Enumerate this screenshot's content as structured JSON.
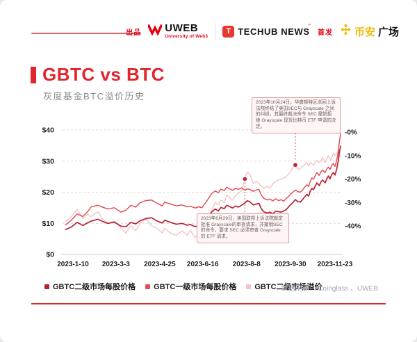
{
  "header": {
    "produced_by_label": "出品",
    "first_release_label": "首发",
    "uweb": {
      "name": "UWEB",
      "subtitle": "University of Web3"
    },
    "techub": {
      "icon_letter": "T",
      "name": "TECHUB NEWS",
      "accent": "ˆ"
    },
    "binance": {
      "name_cn": "币安",
      "name_suffix": "广场"
    }
  },
  "title": {
    "main": "GBTC vs BTC",
    "subtitle": "灰度基金BTC溢价历史"
  },
  "legend": [
    {
      "label": "GBTC二级市场每股价格",
      "color": "#b82230"
    },
    {
      "label": "GBTC一级市场每股价格",
      "color": "#e25158"
    },
    {
      "label": "GBTC二级市场溢价",
      "color": "#f2c4c6"
    }
  ],
  "source": {
    "text": "数据来源： Coinglass 、UWEB"
  },
  "colors": {
    "accent_red": "#e2242c",
    "brand_red": "#e60012",
    "binance_yellow": "#F0B90B",
    "grid_pink": "#eed3d3",
    "annotation_border": "#e59a9a",
    "dot_red": "#c02330"
  },
  "chart_data": {
    "type": "line",
    "title": "灰度基金BTC溢价历史",
    "grid": "horizontal-dashed",
    "legend_position": "bottom",
    "x_axis": {
      "unit": "date",
      "range_days": [
        1,
        334
      ],
      "ticks": [
        {
          "label": "2023-1-10",
          "day": 10
        },
        {
          "label": "2023-3-3",
          "day": 62
        },
        {
          "label": "2023-4-25",
          "day": 115
        },
        {
          "label": "2023-6-16",
          "day": 167
        },
        {
          "label": "2023-8-8",
          "day": 220
        },
        {
          "label": "2023-9-30",
          "day": 273
        },
        {
          "label": "2023-11-23",
          "day": 327
        }
      ]
    },
    "y_left": {
      "unit": "USD",
      "ylim": [
        0,
        44
      ],
      "ticks": [
        {
          "label": "$40",
          "value": 40
        },
        {
          "label": "$30",
          "value": 30
        },
        {
          "label": "$20",
          "value": 20
        },
        {
          "label": "$10",
          "value": 10
        },
        {
          "label": "$0",
          "value": 0
        }
      ]
    },
    "y_right": {
      "unit": "premium %",
      "ylim": [
        0,
        -52
      ],
      "ticks": [
        {
          "label": "-0%",
          "value": 0
        },
        {
          "label": "-10%",
          "value": -10
        },
        {
          "label": "-20%",
          "value": -20
        },
        {
          "label": "-30%",
          "value": -30
        },
        {
          "label": "-40%",
          "value": -40
        }
      ]
    },
    "series": [
      {
        "name": "GBTC二级市场每股价格",
        "axis": "left",
        "color": "#b82230",
        "points": [
          [
            1,
            8.0
          ],
          [
            8,
            8.8
          ],
          [
            15,
            10.3
          ],
          [
            22,
            9.3
          ],
          [
            28,
            10.2
          ],
          [
            32,
            10.7
          ],
          [
            40,
            11.3
          ],
          [
            46,
            10.6
          ],
          [
            52,
            10.0
          ],
          [
            60,
            10.4
          ],
          [
            68,
            9.1
          ],
          [
            74,
            8.9
          ],
          [
            80,
            10.3
          ],
          [
            86,
            9.8
          ],
          [
            91,
            10.8
          ],
          [
            98,
            11.5
          ],
          [
            105,
            11.8
          ],
          [
            112,
            10.7
          ],
          [
            118,
            10.1
          ],
          [
            121,
            11.0
          ],
          [
            128,
            10.3
          ],
          [
            135,
            9.7
          ],
          [
            142,
            10.0
          ],
          [
            148,
            9.4
          ],
          [
            152,
            9.6
          ],
          [
            158,
            8.9
          ],
          [
            162,
            9.3
          ],
          [
            166,
            9.4
          ],
          [
            172,
            11.2
          ],
          [
            178,
            13.7
          ],
          [
            182,
            14.6
          ],
          [
            186,
            14.0
          ],
          [
            189,
            15.1
          ],
          [
            193,
            14.7
          ],
          [
            196,
            15.8
          ],
          [
            200,
            15.3
          ],
          [
            203,
            14.9
          ],
          [
            207,
            15.6
          ],
          [
            210,
            15.2
          ],
          [
            214,
            15.8
          ],
          [
            218,
            16.5
          ],
          [
            221,
            17.3
          ],
          [
            224,
            16.9
          ],
          [
            228,
            15.9
          ],
          [
            232,
            16.2
          ],
          [
            235,
            16.4
          ],
          [
            238,
            14.6
          ],
          [
            241,
            13.7
          ],
          [
            245,
            13.3
          ],
          [
            248,
            13.6
          ],
          [
            252,
            13.1
          ],
          [
            255,
            13.9
          ],
          [
            262,
            13.6
          ],
          [
            268,
            14.4
          ],
          [
            273,
            15.9
          ],
          [
            276,
            16.7
          ],
          [
            279,
            17.6
          ],
          [
            282,
            17.0
          ],
          [
            285,
            16.8
          ],
          [
            288,
            17.7
          ],
          [
            290,
            18.4
          ],
          [
            293,
            19.3
          ],
          [
            295,
            18.7
          ],
          [
            297,
            20.3
          ],
          [
            299,
            21.2
          ],
          [
            301,
            20.8
          ],
          [
            303,
            21.9
          ],
          [
            305,
            23.0
          ],
          [
            308,
            22.1
          ],
          [
            310,
            23.3
          ],
          [
            312,
            23.9
          ],
          [
            315,
            23.0
          ],
          [
            317,
            24.2
          ],
          [
            319,
            25.2
          ],
          [
            321,
            24.3
          ],
          [
            323,
            25.7
          ],
          [
            325,
            26.3
          ],
          [
            327,
            25.5
          ],
          [
            329,
            27.4
          ],
          [
            331,
            30.2
          ],
          [
            332,
            32.4
          ],
          [
            333,
            33.8
          ],
          [
            334,
            34.8
          ]
        ]
      },
      {
        "name": "GBTC一级市场每股价格",
        "axis": "left",
        "color": "#e25158",
        "points": [
          [
            1,
            9.5
          ],
          [
            8,
            11.0
          ],
          [
            15,
            13.0
          ],
          [
            22,
            12.2
          ],
          [
            28,
            13.8
          ],
          [
            32,
            15.3
          ],
          [
            40,
            15.8
          ],
          [
            46,
            15.2
          ],
          [
            52,
            14.6
          ],
          [
            60,
            15.0
          ],
          [
            68,
            13.6
          ],
          [
            74,
            14.2
          ],
          [
            80,
            15.8
          ],
          [
            86,
            15.2
          ],
          [
            91,
            16.6
          ],
          [
            98,
            17.3
          ],
          [
            105,
            17.5
          ],
          [
            112,
            16.4
          ],
          [
            118,
            15.6
          ],
          [
            121,
            16.8
          ],
          [
            128,
            16.2
          ],
          [
            135,
            15.6
          ],
          [
            142,
            15.9
          ],
          [
            148,
            15.3
          ],
          [
            152,
            15.5
          ],
          [
            158,
            14.9
          ],
          [
            162,
            15.3
          ],
          [
            166,
            15.0
          ],
          [
            172,
            17.2
          ],
          [
            178,
            19.6
          ],
          [
            182,
            20.4
          ],
          [
            186,
            19.8
          ],
          [
            189,
            21.0
          ],
          [
            193,
            20.5
          ],
          [
            196,
            21.6
          ],
          [
            200,
            21.0
          ],
          [
            203,
            20.6
          ],
          [
            207,
            21.3
          ],
          [
            210,
            20.9
          ],
          [
            214,
            21.4
          ],
          [
            218,
            20.6
          ],
          [
            221,
            21.1
          ],
          [
            224,
            20.9
          ],
          [
            228,
            20.3
          ],
          [
            232,
            20.7
          ],
          [
            235,
            20.9
          ],
          [
            238,
            19.0
          ],
          [
            241,
            18.0
          ],
          [
            245,
            17.5
          ],
          [
            248,
            17.8
          ],
          [
            252,
            17.2
          ],
          [
            255,
            17.9
          ],
          [
            259,
            17.3
          ],
          [
            262,
            17.6
          ],
          [
            265,
            17.1
          ],
          [
            268,
            18.0
          ],
          [
            271,
            18.6
          ],
          [
            273,
            19.4
          ],
          [
            276,
            20.0
          ],
          [
            279,
            20.7
          ],
          [
            282,
            20.2
          ],
          [
            285,
            20.0
          ],
          [
            288,
            20.8
          ],
          [
            290,
            21.5
          ],
          [
            293,
            22.4
          ],
          [
            295,
            21.8
          ],
          [
            297,
            23.4
          ],
          [
            299,
            24.6
          ],
          [
            301,
            24.2
          ],
          [
            303,
            25.3
          ],
          [
            305,
            26.3
          ],
          [
            308,
            25.4
          ],
          [
            310,
            26.6
          ],
          [
            312,
            27.1
          ],
          [
            315,
            26.3
          ],
          [
            317,
            27.4
          ],
          [
            319,
            28.1
          ],
          [
            321,
            27.3
          ],
          [
            323,
            28.6
          ],
          [
            325,
            29.2
          ],
          [
            327,
            28.3
          ],
          [
            329,
            30.2
          ],
          [
            331,
            33.0
          ],
          [
            332,
            35.5
          ],
          [
            333,
            37.4
          ],
          [
            334,
            38.8
          ]
        ]
      },
      {
        "name": "GBTC二级市场溢价",
        "axis": "right",
        "color": "#f2c4c6",
        "points": [
          [
            1,
            -38
          ],
          [
            8,
            -36
          ],
          [
            15,
            -33
          ],
          [
            22,
            -37
          ],
          [
            28,
            -35
          ],
          [
            32,
            -36
          ],
          [
            40,
            -34
          ],
          [
            46,
            -37
          ],
          [
            52,
            -39
          ],
          [
            60,
            -38
          ],
          [
            68,
            -41
          ],
          [
            74,
            -43
          ],
          [
            80,
            -40
          ],
          [
            86,
            -42
          ],
          [
            91,
            -39
          ],
          [
            98,
            -37
          ],
          [
            105,
            -40
          ],
          [
            112,
            -41
          ],
          [
            118,
            -43
          ],
          [
            121,
            -41
          ],
          [
            128,
            -43
          ],
          [
            135,
            -44
          ],
          [
            142,
            -42
          ],
          [
            148,
            -44
          ],
          [
            152,
            -42
          ],
          [
            158,
            -45
          ],
          [
            162,
            -43
          ],
          [
            166,
            -42
          ],
          [
            172,
            -37
          ],
          [
            178,
            -33
          ],
          [
            182,
            -30
          ],
          [
            186,
            -31
          ],
          [
            189,
            -29
          ],
          [
            193,
            -30
          ],
          [
            196,
            -27
          ],
          [
            200,
            -28
          ],
          [
            203,
            -29
          ],
          [
            207,
            -27
          ],
          [
            210,
            -26
          ],
          [
            214,
            -25
          ],
          [
            218,
            -20
          ],
          [
            221,
            -17
          ],
          [
            224,
            -18
          ],
          [
            228,
            -22
          ],
          [
            232,
            -21
          ],
          [
            235,
            -22
          ],
          [
            238,
            -23
          ],
          [
            241,
            -24
          ],
          [
            245,
            -23
          ],
          [
            248,
            -24
          ],
          [
            252,
            -22
          ],
          [
            255,
            -21
          ],
          [
            262,
            -20
          ],
          [
            268,
            -19
          ],
          [
            273,
            -17
          ],
          [
            276,
            -15
          ],
          [
            279,
            -14
          ],
          [
            282,
            -16
          ],
          [
            285,
            -15.5
          ],
          [
            288,
            -14.5
          ],
          [
            290,
            -14
          ],
          [
            293,
            -13
          ],
          [
            295,
            -14.5
          ],
          [
            297,
            -13
          ],
          [
            301,
            -14
          ],
          [
            305,
            -12
          ],
          [
            308,
            -13
          ],
          [
            312,
            -11
          ],
          [
            315,
            -13
          ],
          [
            319,
            -10
          ],
          [
            322,
            -12
          ],
          [
            325,
            -9
          ],
          [
            327,
            -10
          ],
          [
            329,
            -9
          ],
          [
            331,
            -8
          ],
          [
            333,
            -10
          ],
          [
            334,
            -11
          ]
        ]
      }
    ],
    "annotations": [
      {
        "text": "2023年8月29日，美国联邦上诉法院裁定批准 Grayscale的审查请求，并撤销SEC的命令，要求 SEC 必须审查 Grayscale 的 ETF 请求。",
        "anchor_day": 218,
        "anchor_value_pct": -20,
        "connector": "down"
      },
      {
        "text": "2023年10月24日，华盛顿特区巡回上诉法院终结了美国SEC与 Grayscale 之间的纠纷，其最终裁决命令 SEC 撤销拒绝 Grayscale 现货比特币 ETF 申请的决定。",
        "anchor_day": 279,
        "anchor_value_pct": -14,
        "connector": "up"
      }
    ]
  }
}
